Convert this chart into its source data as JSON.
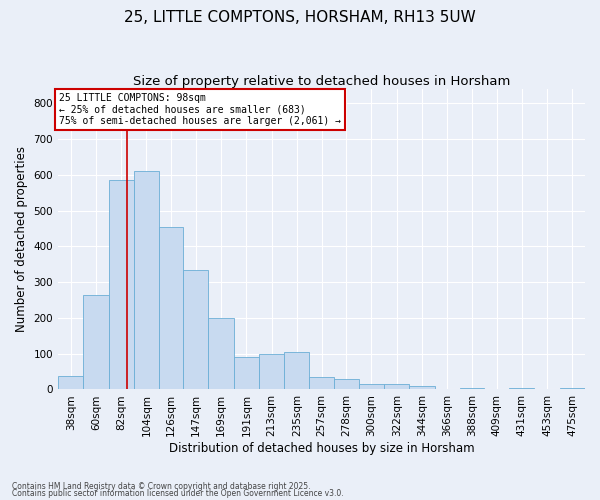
{
  "title1": "25, LITTLE COMPTONS, HORSHAM, RH13 5UW",
  "title2": "Size of property relative to detached houses in Horsham",
  "xlabel": "Distribution of detached houses by size in Horsham",
  "ylabel": "Number of detached properties",
  "bar_color": "#c8daf0",
  "bar_edge_color": "#6baed6",
  "categories": [
    "38sqm",
    "60sqm",
    "82sqm",
    "104sqm",
    "126sqm",
    "147sqm",
    "169sqm",
    "191sqm",
    "213sqm",
    "235sqm",
    "257sqm",
    "278sqm",
    "300sqm",
    "322sqm",
    "344sqm",
    "366sqm",
    "388sqm",
    "409sqm",
    "431sqm",
    "453sqm",
    "475sqm"
  ],
  "values": [
    38,
    265,
    585,
    610,
    455,
    335,
    200,
    90,
    100,
    105,
    35,
    30,
    15,
    15,
    10,
    0,
    5,
    0,
    5,
    0,
    5
  ],
  "bin_edges": [
    38,
    60,
    82,
    104,
    126,
    147,
    169,
    191,
    213,
    235,
    257,
    278,
    300,
    322,
    344,
    366,
    388,
    409,
    431,
    453,
    475,
    497
  ],
  "property_size": 98,
  "red_line_x": 98,
  "annotation_text": "25 LITTLE COMPTONS: 98sqm\n← 25% of detached houses are smaller (683)\n75% of semi-detached houses are larger (2,061) →",
  "annotation_box_color": "#ffffff",
  "annotation_edge_color": "#cc0000",
  "red_line_color": "#cc0000",
  "ylim": [
    0,
    840
  ],
  "yticks": [
    0,
    100,
    200,
    300,
    400,
    500,
    600,
    700,
    800
  ],
  "footnote1": "Contains HM Land Registry data © Crown copyright and database right 2025.",
  "footnote2": "Contains public sector information licensed under the Open Government Licence v3.0.",
  "background_color": "#eaeff8",
  "grid_color": "#ffffff",
  "title_fontsize": 11,
  "subtitle_fontsize": 9.5,
  "axis_fontsize": 8.5,
  "tick_fontsize": 7.5,
  "footnote_fontsize": 5.5
}
